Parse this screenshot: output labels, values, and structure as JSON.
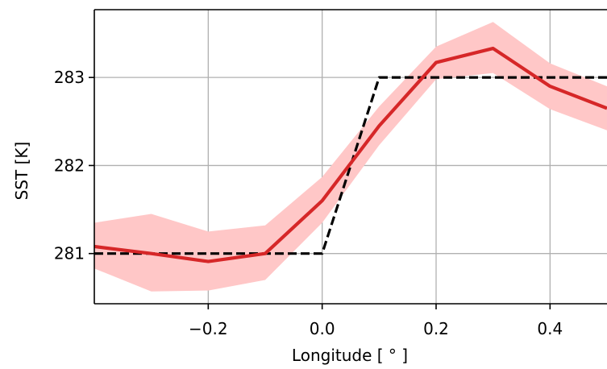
{
  "chart_data": {
    "type": "line",
    "xlabel": "Longitude [$^\\circ$]",
    "xlabel_display": "Longitude [ ° ]",
    "ylabel": "SST [K]",
    "xlim": [
      -0.4,
      0.5
    ],
    "ylim": [
      280.43,
      283.77
    ],
    "xticks": [
      -0.2,
      0.0,
      0.2,
      0.4
    ],
    "xtick_labels": [
      "−0.2",
      "0.0",
      "0.2",
      "0.4"
    ],
    "yticks": [
      281,
      282,
      283
    ],
    "ytick_labels": [
      "281",
      "282",
      "283"
    ],
    "grid": true,
    "series": [
      {
        "style": "dashed",
        "color": "#000000",
        "x": [
          -0.4,
          0.0,
          0.1,
          0.5
        ],
        "y": [
          281.0,
          281.0,
          283.0,
          283.0
        ]
      },
      {
        "style": "solid",
        "color": "#d62728",
        "x": [
          -0.4,
          -0.3,
          -0.2,
          -0.1,
          0.0,
          0.1,
          0.2,
          0.3,
          0.4,
          0.5
        ],
        "y": [
          281.08,
          281.0,
          280.91,
          281.0,
          281.6,
          282.45,
          283.17,
          283.33,
          282.9,
          282.65
        ],
        "band_lower": [
          280.83,
          280.57,
          280.58,
          280.7,
          281.35,
          282.23,
          282.98,
          283.05,
          282.64,
          282.4
        ],
        "band_upper": [
          281.35,
          281.45,
          281.25,
          281.32,
          281.87,
          282.67,
          283.35,
          283.63,
          283.16,
          282.9
        ],
        "band_color": "#ffc7c7"
      }
    ]
  }
}
